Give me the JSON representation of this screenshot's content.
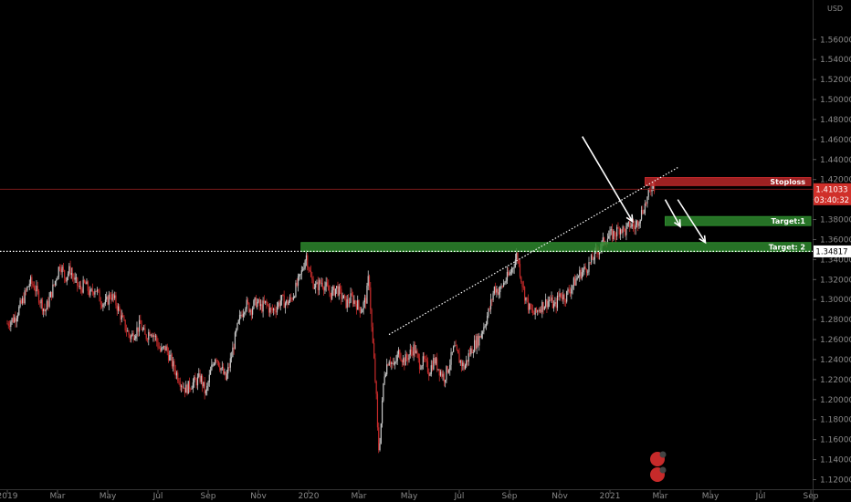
{
  "chart_data": {
    "type": "candlestick",
    "currency": "USD",
    "ylim": [
      1.11,
      1.56
    ],
    "y_ticks": [
      1.12,
      1.14,
      1.16,
      1.18,
      1.2,
      1.22,
      1.24,
      1.26,
      1.28,
      1.3,
      1.32,
      1.34,
      1.36,
      1.38,
      1.4,
      1.42,
      1.44,
      1.46,
      1.48,
      1.5,
      1.52,
      1.54,
      1.56
    ],
    "y_tick_labels": [
      "1.12000",
      "1.14000",
      "1.16000",
      "1.18000",
      "1.20000",
      "1.22000",
      "1.24000",
      "1.26000",
      "1.28000",
      "1.30000",
      "1.32000",
      "1.34000",
      "1.36000",
      "1.38000",
      "1.40000",
      "1.42000",
      "1.44000",
      "1.46000",
      "1.48000",
      "1.50000",
      "1.52000",
      "1.54000",
      "1.56000"
    ],
    "x_ticks": [
      {
        "label": "2019",
        "month": 0
      },
      {
        "label": "Mar",
        "month": 2
      },
      {
        "label": "May",
        "month": 4
      },
      {
        "label": "Jul",
        "month": 6
      },
      {
        "label": "Sep",
        "month": 8
      },
      {
        "label": "Nov",
        "month": 10
      },
      {
        "label": "2020",
        "month": 12
      },
      {
        "label": "Mar",
        "month": 14
      },
      {
        "label": "May",
        "month": 16
      },
      {
        "label": "Jul",
        "month": 18
      },
      {
        "label": "Sep",
        "month": 20
      },
      {
        "label": "Nov",
        "month": 22
      },
      {
        "label": "2021",
        "month": 24
      },
      {
        "label": "Mar",
        "month": 26
      },
      {
        "label": "May",
        "month": 28
      },
      {
        "label": "Jul",
        "month": 30
      },
      {
        "label": "Sep",
        "month": 32
      }
    ],
    "close_path": [
      [
        0.0,
        1.276
      ],
      [
        0.3,
        1.282
      ],
      [
        0.6,
        1.298
      ],
      [
        0.9,
        1.318
      ],
      [
        1.1,
        1.312
      ],
      [
        1.3,
        1.3
      ],
      [
        1.5,
        1.288
      ],
      [
        1.7,
        1.302
      ],
      [
        1.9,
        1.318
      ],
      [
        2.1,
        1.336
      ],
      [
        2.3,
        1.322
      ],
      [
        2.5,
        1.33
      ],
      [
        2.7,
        1.318
      ],
      [
        2.9,
        1.31
      ],
      [
        3.1,
        1.316
      ],
      [
        3.3,
        1.305
      ],
      [
        3.5,
        1.312
      ],
      [
        3.7,
        1.3
      ],
      [
        3.9,
        1.295
      ],
      [
        4.1,
        1.305
      ],
      [
        4.3,
        1.298
      ],
      [
        4.5,
        1.285
      ],
      [
        4.7,
        1.272
      ],
      [
        4.9,
        1.262
      ],
      [
        5.1,
        1.268
      ],
      [
        5.3,
        1.275
      ],
      [
        5.5,
        1.262
      ],
      [
        5.7,
        1.27
      ],
      [
        5.9,
        1.262
      ],
      [
        6.1,
        1.248
      ],
      [
        6.3,
        1.252
      ],
      [
        6.5,
        1.24
      ],
      [
        6.7,
        1.228
      ],
      [
        6.9,
        1.218
      ],
      [
        7.1,
        1.21
      ],
      [
        7.3,
        1.215
      ],
      [
        7.5,
        1.218
      ],
      [
        7.7,
        1.222
      ],
      [
        7.9,
        1.205
      ],
      [
        8.1,
        1.228
      ],
      [
        8.3,
        1.245
      ],
      [
        8.5,
        1.232
      ],
      [
        8.7,
        1.22
      ],
      [
        8.9,
        1.24
      ],
      [
        9.1,
        1.265
      ],
      [
        9.3,
        1.285
      ],
      [
        9.5,
        1.296
      ],
      [
        9.7,
        1.29
      ],
      [
        9.9,
        1.298
      ],
      [
        10.1,
        1.292
      ],
      [
        10.3,
        1.296
      ],
      [
        10.5,
        1.288
      ],
      [
        10.7,
        1.292
      ],
      [
        10.9,
        1.3
      ],
      [
        11.1,
        1.296
      ],
      [
        11.3,
        1.3
      ],
      [
        11.5,
        1.312
      ],
      [
        11.7,
        1.325
      ],
      [
        11.9,
        1.345
      ],
      [
        12.1,
        1.32
      ],
      [
        12.3,
        1.312
      ],
      [
        12.5,
        1.318
      ],
      [
        12.7,
        1.312
      ],
      [
        12.9,
        1.305
      ],
      [
        13.1,
        1.312
      ],
      [
        13.3,
        1.304
      ],
      [
        13.5,
        1.296
      ],
      [
        13.7,
        1.302
      ],
      [
        13.9,
        1.296
      ],
      [
        14.1,
        1.29
      ],
      [
        14.3,
        1.302
      ],
      [
        14.4,
        1.326
      ],
      [
        14.5,
        1.275
      ],
      [
        14.6,
        1.24
      ],
      [
        14.7,
        1.2
      ],
      [
        14.75,
        1.165
      ],
      [
        14.8,
        1.148
      ],
      [
        14.9,
        1.182
      ],
      [
        15.0,
        1.225
      ],
      [
        15.2,
        1.242
      ],
      [
        15.4,
        1.232
      ],
      [
        15.6,
        1.248
      ],
      [
        15.8,
        1.238
      ],
      [
        16.0,
        1.245
      ],
      [
        16.2,
        1.252
      ],
      [
        16.4,
        1.236
      ],
      [
        16.6,
        1.238
      ],
      [
        16.8,
        1.228
      ],
      [
        17.0,
        1.24
      ],
      [
        17.2,
        1.23
      ],
      [
        17.4,
        1.222
      ],
      [
        17.6,
        1.235
      ],
      [
        17.8,
        1.252
      ],
      [
        18.0,
        1.24
      ],
      [
        18.2,
        1.232
      ],
      [
        18.4,
        1.246
      ],
      [
        18.6,
        1.255
      ],
      [
        18.8,
        1.262
      ],
      [
        19.0,
        1.275
      ],
      [
        19.2,
        1.29
      ],
      [
        19.4,
        1.312
      ],
      [
        19.6,
        1.308
      ],
      [
        19.8,
        1.318
      ],
      [
        20.0,
        1.325
      ],
      [
        20.2,
        1.338
      ],
      [
        20.3,
        1.346
      ],
      [
        20.4,
        1.33
      ],
      [
        20.6,
        1.305
      ],
      [
        20.8,
        1.29
      ],
      [
        21.0,
        1.285
      ],
      [
        21.2,
        1.292
      ],
      [
        21.4,
        1.296
      ],
      [
        21.6,
        1.3
      ],
      [
        21.8,
        1.292
      ],
      [
        22.0,
        1.306
      ],
      [
        22.2,
        1.302
      ],
      [
        22.4,
        1.31
      ],
      [
        22.6,
        1.318
      ],
      [
        22.8,
        1.326
      ],
      [
        23.0,
        1.33
      ],
      [
        23.2,
        1.336
      ],
      [
        23.4,
        1.345
      ],
      [
        23.6,
        1.352
      ],
      [
        23.8,
        1.36
      ],
      [
        24.0,
        1.364
      ],
      [
        24.2,
        1.366
      ],
      [
        24.4,
        1.372
      ],
      [
        24.6,
        1.368
      ],
      [
        24.8,
        1.375
      ],
      [
        25.0,
        1.372
      ],
      [
        25.2,
        1.384
      ],
      [
        25.4,
        1.395
      ],
      [
        25.6,
        1.408
      ],
      [
        25.7,
        1.418
      ],
      [
        25.8,
        1.41
      ]
    ],
    "trendlines": [
      {
        "style": "dotted",
        "from": [
          15.2,
          1.265
        ],
        "to": [
          26.7,
          1.432
        ]
      },
      {
        "style": "dotted",
        "from": [
          -1,
          1.3482
        ],
        "to": [
          32.5,
          1.3482
        ]
      }
    ],
    "zones": [
      {
        "label": "Stoploss",
        "x0": 25.4,
        "x1": 32.4,
        "y0": 1.414,
        "y1": 1.422,
        "color": "#c0282a"
      },
      {
        "label": "Target:1",
        "x0": 26.2,
        "x1": 32.4,
        "y0": 1.374,
        "y1": 1.383,
        "color": "#2e8b2e"
      },
      {
        "label": "Target: 2",
        "x0": 11.7,
        "x1": 32.4,
        "y0": 1.348,
        "y1": 1.357,
        "color": "#2e8b2e"
      }
    ],
    "arrows": [
      {
        "from": [
          22.9,
          1.463
        ],
        "to": [
          24.9,
          1.378
        ]
      },
      {
        "from": [
          26.2,
          1.4
        ],
        "to": [
          26.8,
          1.373
        ]
      },
      {
        "from": [
          26.7,
          1.4
        ],
        "to": [
          27.8,
          1.357
        ]
      }
    ],
    "price_tags": [
      {
        "value": 1.41033,
        "label": "1.41033",
        "sub": "03:40:32",
        "color": "#d0302a"
      },
      {
        "value": 1.34817,
        "label": "1.34817",
        "sub": "",
        "color": "#ffffff"
      }
    ],
    "colors": {
      "up": "#c8c8c8",
      "down": "#c62a2a",
      "background": "#000000"
    }
  }
}
